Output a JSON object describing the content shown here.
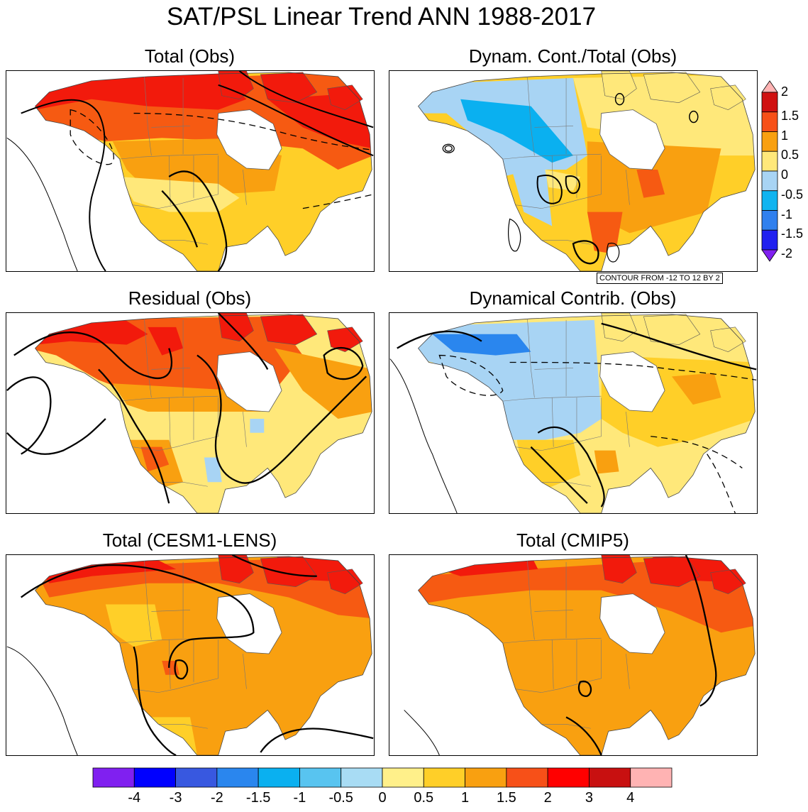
{
  "title": "SAT/PSL Linear Trend ANN 1988-2017",
  "chart_data": [
    {
      "type": "heatmap",
      "title": "Total (Obs)",
      "field": "SAT linear trend",
      "contours": "PSL linear trend"
    },
    {
      "type": "heatmap",
      "title": "Dynam. Cont./Total (Obs)",
      "field": "Dynamical contribution / Total ratio",
      "contours": "PSL",
      "contour_note": "CONTOUR FROM -12 TO 12 BY 2"
    },
    {
      "type": "heatmap",
      "title": "Residual (Obs)",
      "field": "SAT residual trend",
      "contours": "PSL"
    },
    {
      "type": "heatmap",
      "title": "Dynamical Contrib. (Obs)",
      "field": "SAT dynamical contribution trend",
      "contours": "PSL"
    },
    {
      "type": "heatmap",
      "title": "Total (CESM1-LENS)",
      "field": "SAT linear trend",
      "contours": "PSL"
    },
    {
      "type": "heatmap",
      "title": "Total (CMIP5)",
      "field": "SAT linear trend",
      "contours": "PSL"
    }
  ],
  "ratio_colorbar": {
    "levels": [
      "2",
      "1.5",
      "1",
      "0.5",
      "0",
      "-0.5",
      "-1",
      "-1.5",
      "-2"
    ],
    "colors": [
      "#ffb3b3",
      "#d01010",
      "#f75018",
      "#f9a010",
      "#ffe87a",
      "#a8d4f4",
      "#10b4f0",
      "#3080ee",
      "#2020f0",
      "#8020f0"
    ]
  },
  "sat_colorbar": {
    "labels": [
      "-4",
      "-3",
      "-2",
      "-1.5",
      "-1",
      "-0.5",
      "0",
      "0.5",
      "1",
      "1.5",
      "2",
      "3",
      "4"
    ],
    "colors": [
      "#8020f0",
      "#0000ff",
      "#3858e0",
      "#2a86ee",
      "#0ab0f0",
      "#58c4f0",
      "#a8dcf4",
      "#fff08a",
      "#ffcf28",
      "#f9a010",
      "#f75018",
      "#ff0000",
      "#c81010",
      "#ffb3b3"
    ]
  },
  "palette": {
    "red": "#f21a0c",
    "orange_red": "#f65a12",
    "orange": "#f9a010",
    "gold": "#ffcf28",
    "yellow": "#ffe87a",
    "light_blue": "#a8d4f4",
    "cyan": "#0ab0f0",
    "blue": "#2a86ee"
  }
}
